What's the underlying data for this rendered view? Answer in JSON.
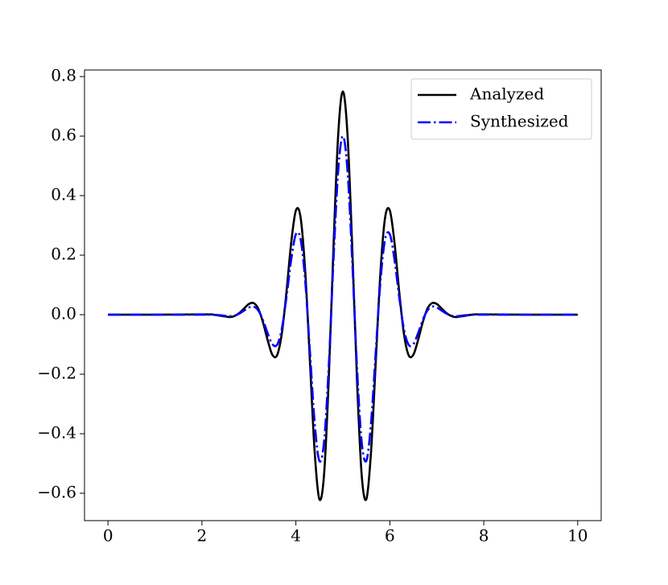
{
  "chart_data": {
    "type": "line",
    "x": [
      0,
      1,
      2.0,
      2.1,
      2.2,
      2.3,
      2.4,
      2.5,
      2.6,
      2.7,
      2.8,
      2.9,
      3.0,
      3.1,
      3.2,
      3.3,
      3.4,
      3.5,
      3.6,
      3.7,
      3.8,
      3.9,
      4.0,
      4.1,
      4.2,
      4.3,
      4.4,
      4.5,
      4.6,
      4.7,
      4.8,
      4.9,
      5.0,
      5.1,
      5.2,
      5.3,
      5.4,
      5.5,
      5.6,
      5.7,
      5.8,
      5.9,
      6.0,
      6.1,
      6.2,
      6.3,
      6.4,
      6.5,
      6.6,
      6.7,
      6.8,
      6.9,
      7.0,
      7.1,
      7.2,
      7.3,
      7.4,
      7.5,
      7.6,
      7.7,
      7.8,
      7.9,
      8.0,
      9,
      10
    ],
    "series": [
      {
        "name": "Analyzed",
        "color": "#000000",
        "style": "solid",
        "values": [
          0,
          0,
          0.001,
          0.001,
          0.001,
          -0.001,
          -0.004,
          -0.006,
          -0.008,
          -0.004,
          0.006,
          0.021,
          0.036,
          0.039,
          0.02,
          -0.026,
          -0.086,
          -0.135,
          -0.136,
          -0.064,
          0.077,
          0.241,
          0.35,
          0.327,
          0.142,
          -0.16,
          -0.461,
          -0.62,
          -0.537,
          -0.216,
          0.225,
          0.602,
          0.75,
          0.602,
          0.225,
          -0.216,
          -0.537,
          -0.62,
          -0.461,
          -0.16,
          0.142,
          0.327,
          0.35,
          0.241,
          0.077,
          -0.064,
          -0.136,
          -0.135,
          -0.086,
          -0.026,
          0.02,
          0.039,
          0.036,
          0.021,
          0.006,
          -0.004,
          -0.008,
          -0.006,
          -0.004,
          -0.001,
          0.001,
          0.001,
          0.001,
          0,
          0
        ]
      },
      {
        "name": "Synthesized",
        "color": "#0000ff",
        "style": "dashdot",
        "values": [
          0,
          0,
          0,
          0,
          0,
          -0.001,
          -0.002,
          -0.004,
          -0.005,
          -0.003,
          0.004,
          0.014,
          0.024,
          0.027,
          0.014,
          -0.018,
          -0.063,
          -0.099,
          -0.101,
          -0.048,
          0.059,
          0.184,
          0.27,
          0.254,
          0.111,
          -0.125,
          -0.364,
          -0.491,
          -0.427,
          -0.173,
          0.18,
          0.482,
          0.6,
          0.482,
          0.18,
          -0.173,
          -0.427,
          -0.491,
          -0.364,
          -0.125,
          0.111,
          0.254,
          0.27,
          0.184,
          0.059,
          -0.048,
          -0.101,
          -0.099,
          -0.063,
          -0.018,
          0.014,
          0.027,
          0.024,
          0.014,
          0.004,
          -0.003,
          -0.005,
          -0.004,
          -0.002,
          -0.001,
          0,
          0,
          0,
          0,
          0
        ]
      }
    ],
    "xlim": [
      -0.5,
      10.5
    ],
    "xticks": [
      0,
      2,
      4,
      6,
      8,
      10
    ],
    "ylim": [
      -0.692,
      0.822
    ],
    "yticks": [
      {
        "value": -0.6,
        "label": "−0.6"
      },
      {
        "value": -0.4,
        "label": "−0.4"
      },
      {
        "value": -0.2,
        "label": "−0.2"
      },
      {
        "value": 0,
        "label": "0.0"
      },
      0.2,
      0.4,
      0.6,
      0.8
    ],
    "grid": false,
    "legend": "upper right"
  }
}
